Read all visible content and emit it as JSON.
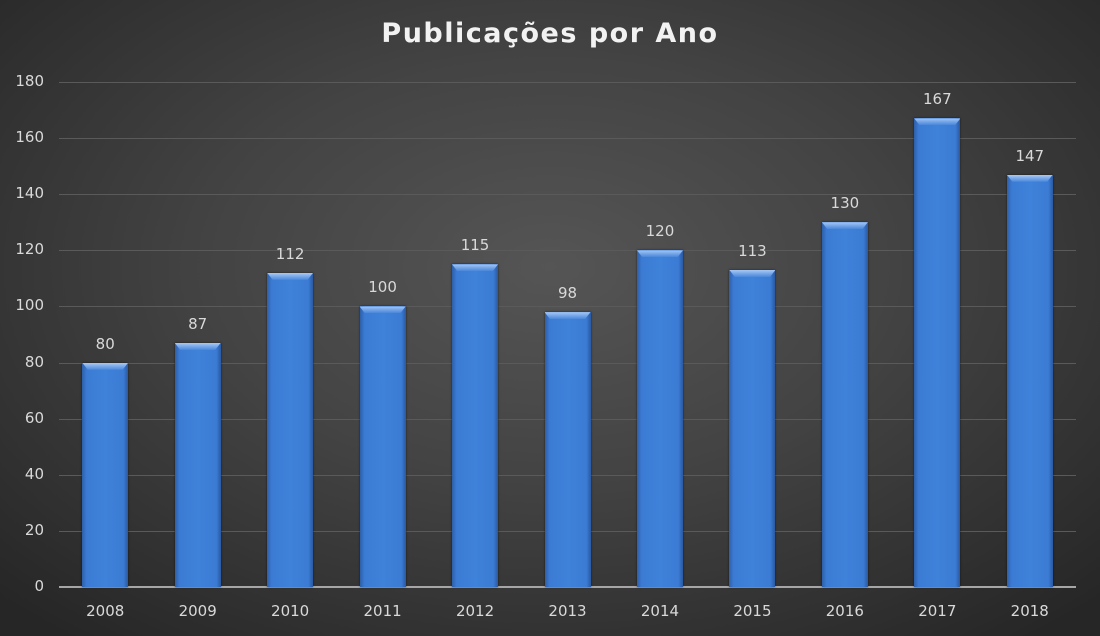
{
  "chart_data": {
    "type": "bar",
    "title": "Publicações por Ano",
    "xlabel": "",
    "ylabel": "",
    "categories": [
      "2008",
      "2009",
      "2010",
      "2011",
      "2012",
      "2013",
      "2014",
      "2015",
      "2016",
      "2017",
      "2018"
    ],
    "values": [
      80,
      87,
      112,
      100,
      115,
      98,
      120,
      113,
      130,
      167,
      147
    ],
    "ylim": [
      0,
      180
    ],
    "yticks": [
      0,
      20,
      40,
      60,
      80,
      100,
      120,
      140,
      160,
      180
    ],
    "grid": true,
    "legend": null,
    "data_labels": true,
    "colors": {
      "bar": "#3f82da",
      "background": "#434343",
      "text": "#d9d9d9",
      "title": "#f2f2f2"
    }
  }
}
